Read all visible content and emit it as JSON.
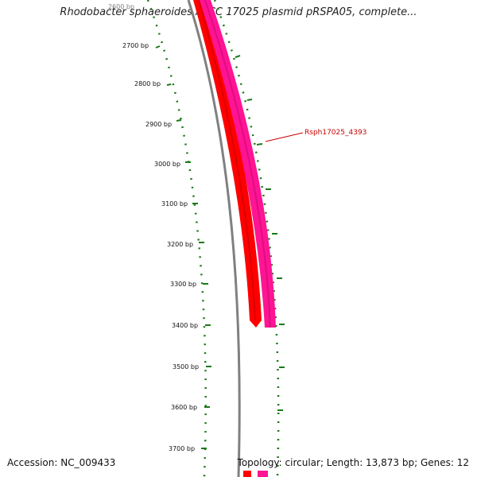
{
  "title": "Rhodobacter sphaeroides ATCC 17025 plasmid pRSPA05, complete...",
  "footer": {
    "accession": "Accession: NC_009433",
    "summary": "Topology: circular; Length: 13,873 bp; Genes: 12"
  },
  "tick_labels": [
    "2600 bp",
    "2700 bp",
    "2800 bp",
    "2900 bp",
    "3000 bp",
    "3100 bp",
    "3200 bp",
    "3300 bp",
    "3400 bp",
    "3500 bp",
    "3600 bp",
    "3700 bp"
  ],
  "gene_label": "Rsph17025_4393",
  "colors": {
    "backbone": "#808080",
    "gene_forward": "#ff0000",
    "gene_reverse": "#ff1493",
    "ticks": "#1a7a1a",
    "label": "#cc0000"
  }
}
